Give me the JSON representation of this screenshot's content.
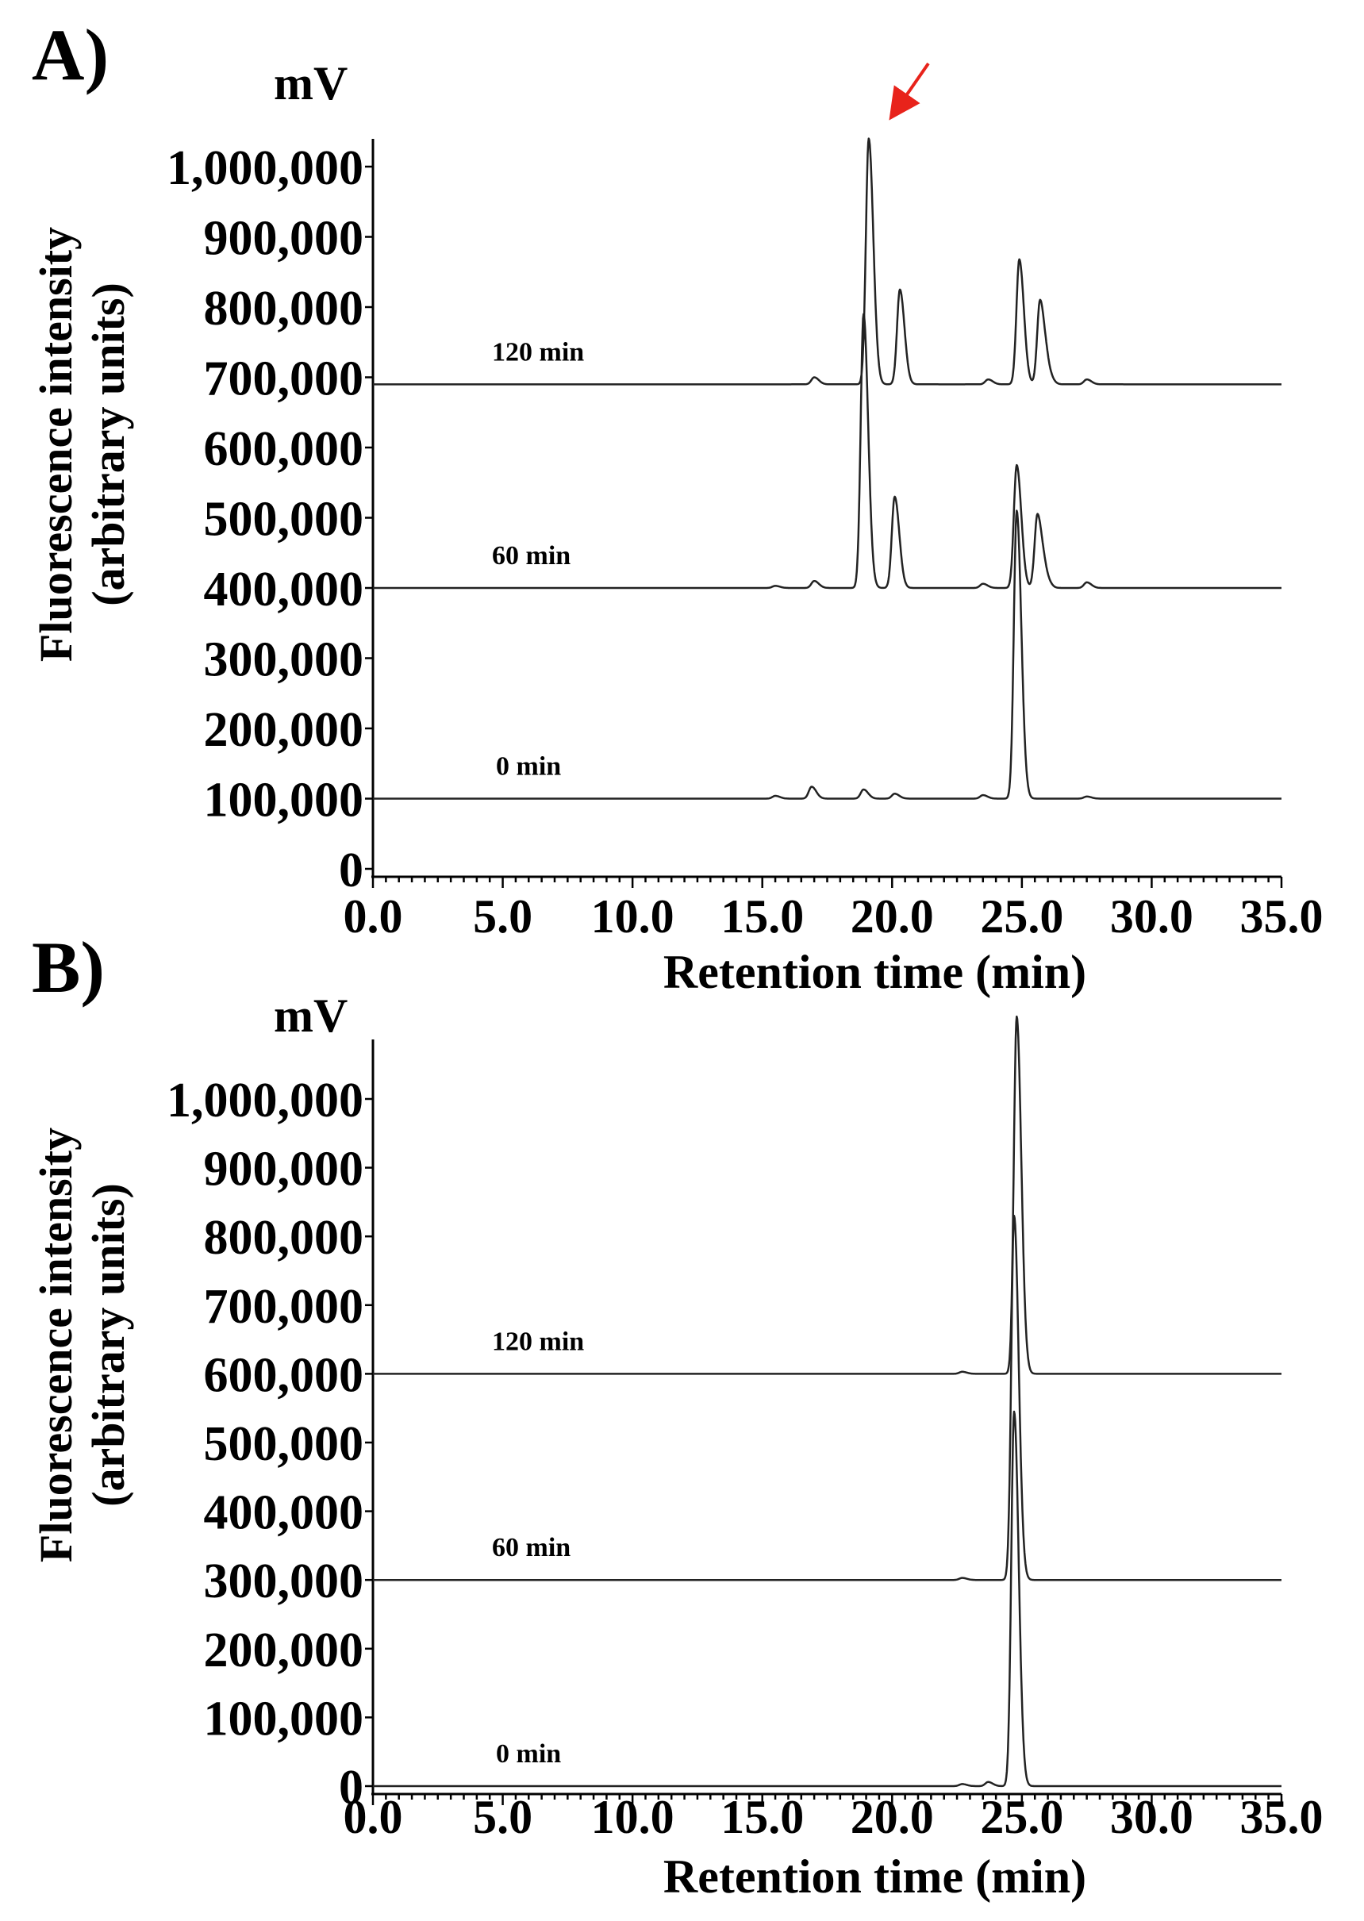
{
  "chart_data": [
    {
      "type": "line",
      "panel_label": "A)",
      "unit_label": "mV",
      "ylabel": [
        "Fluorescence intensity",
        "(arbitrary units)"
      ],
      "xlabel": "Retention time (min)",
      "xlim": [
        0,
        35
      ],
      "ylim": [
        0,
        1050000
      ],
      "x_ticks": [
        "0.0",
        "5.0",
        "10.0",
        "15.0",
        "20.0",
        "25.0",
        "30.0",
        "35.0"
      ],
      "y_ticks": [
        "0",
        "100,000",
        "200,000",
        "300,000",
        "400,000",
        "500,000",
        "600,000",
        "700,000",
        "800,000",
        "900,000",
        "1,000,000"
      ],
      "annotation": {
        "type": "arrow",
        "color": "#e8231b",
        "points_to_x": 19.1
      },
      "series": [
        {
          "name": "120 min",
          "baseline": 690000,
          "peaks": [
            [
              17.0,
              700000
            ],
            [
              19.1,
              1040000
            ],
            [
              20.3,
              825000
            ],
            [
              23.7,
              697000
            ],
            [
              24.9,
              868000
            ],
            [
              25.7,
              810000
            ],
            [
              26.0,
              705000
            ],
            [
              27.5,
              697000
            ]
          ]
        },
        {
          "name": "60 min",
          "baseline": 400000,
          "peaks": [
            [
              15.5,
              403000
            ],
            [
              17.0,
              410000
            ],
            [
              18.9,
              790000
            ],
            [
              20.1,
              530000
            ],
            [
              23.5,
              406000
            ],
            [
              24.8,
              575000
            ],
            [
              25.6,
              505000
            ],
            [
              25.9,
              415000
            ],
            [
              27.5,
              408000
            ]
          ]
        },
        {
          "name": "0 min",
          "baseline": 100000,
          "peaks": [
            [
              15.5,
              104000
            ],
            [
              16.9,
              117000
            ],
            [
              18.9,
              113000
            ],
            [
              20.1,
              107000
            ],
            [
              23.5,
              105000
            ],
            [
              24.8,
              510000
            ],
            [
              27.5,
              103000
            ]
          ]
        }
      ]
    },
    {
      "type": "line",
      "panel_label": "B)",
      "unit_label": "mV",
      "ylabel": [
        "Fluorescence intensity",
        "(arbitrary units)"
      ],
      "xlabel": "Retention time (min)",
      "xlim": [
        0,
        35
      ],
      "ylim": [
        0,
        1120000
      ],
      "x_ticks": [
        "0.0",
        "5.0",
        "10.0",
        "15.0",
        "20.0",
        "25.0",
        "30.0",
        "35.0"
      ],
      "y_ticks": [
        "0",
        "100,000",
        "200,000",
        "300,000",
        "400,000",
        "500,000",
        "600,000",
        "700,000",
        "800,000",
        "900,000",
        "1,000,000"
      ],
      "series": [
        {
          "name": "120 min",
          "baseline": 600000,
          "peaks": [
            [
              22.7,
              603000
            ],
            [
              24.8,
              1120000
            ]
          ]
        },
        {
          "name": "60 min",
          "baseline": 300000,
          "peaks": [
            [
              22.7,
              303000
            ],
            [
              24.7,
              830000
            ]
          ]
        },
        {
          "name": "0 min",
          "baseline": 0,
          "peaks": [
            [
              22.7,
              3000
            ],
            [
              23.7,
              6000
            ],
            [
              24.7,
              545000
            ]
          ]
        }
      ]
    }
  ]
}
